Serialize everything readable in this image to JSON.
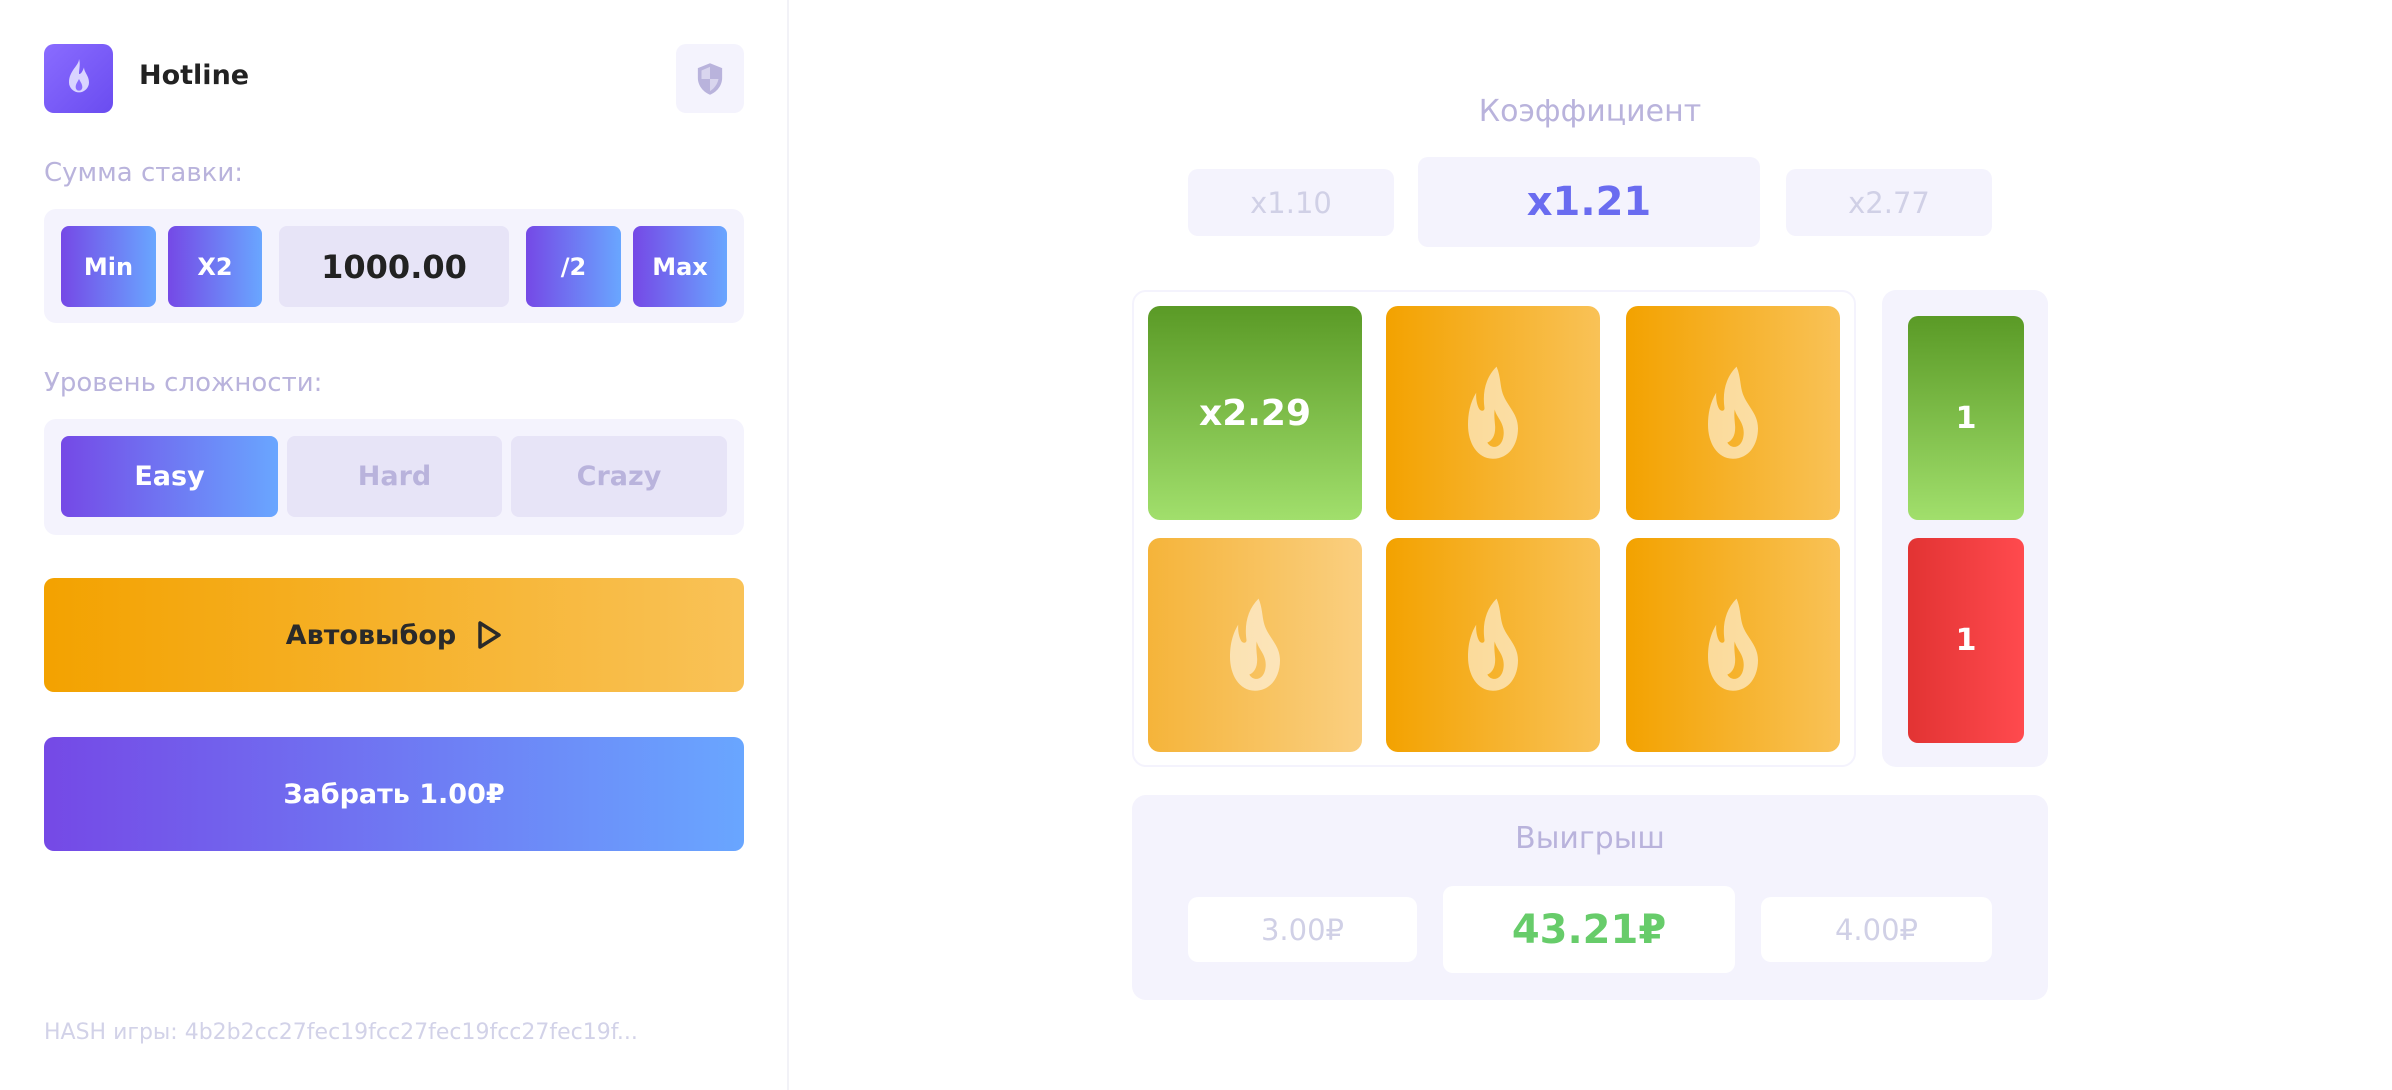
{
  "header": {
    "title": "Hotline",
    "logo_icon": "flame-icon",
    "shield_icon": "shield-icon"
  },
  "bet": {
    "label": "Сумма ставки:",
    "min": "Min",
    "double": "X2",
    "value": "1000.00",
    "half": "/2",
    "max": "Max"
  },
  "difficulty": {
    "label": "Уровень сложности:",
    "options": [
      "Easy",
      "Hard",
      "Crazy"
    ],
    "selected": "Easy"
  },
  "autoselect": {
    "label": "Автовыбор",
    "icon": "play-icon"
  },
  "collect": {
    "label": "Забрать 1.00₽"
  },
  "hash": {
    "text": "HASH игры: 4b2b2cc27fec19fcc27fec19fcc27fec19f..."
  },
  "coefficient": {
    "title": "Коэффициент",
    "prev": "x1.10",
    "current": "x1.21",
    "next": "x2.77"
  },
  "board": {
    "revealed_tile": "x2.29",
    "tile_icon": "flame-icon",
    "side_counts": {
      "green": "1",
      "red": "1"
    }
  },
  "winnings": {
    "title": "Выигрыш",
    "prev": "3.00₽",
    "current": "43.21₽",
    "next": "4.00₽"
  },
  "colors": {
    "accent_start": "#7549e6",
    "accent_end": "#69a6ff",
    "orange": "#f3a200",
    "green": "#67cc6a",
    "red": "#e63535"
  }
}
